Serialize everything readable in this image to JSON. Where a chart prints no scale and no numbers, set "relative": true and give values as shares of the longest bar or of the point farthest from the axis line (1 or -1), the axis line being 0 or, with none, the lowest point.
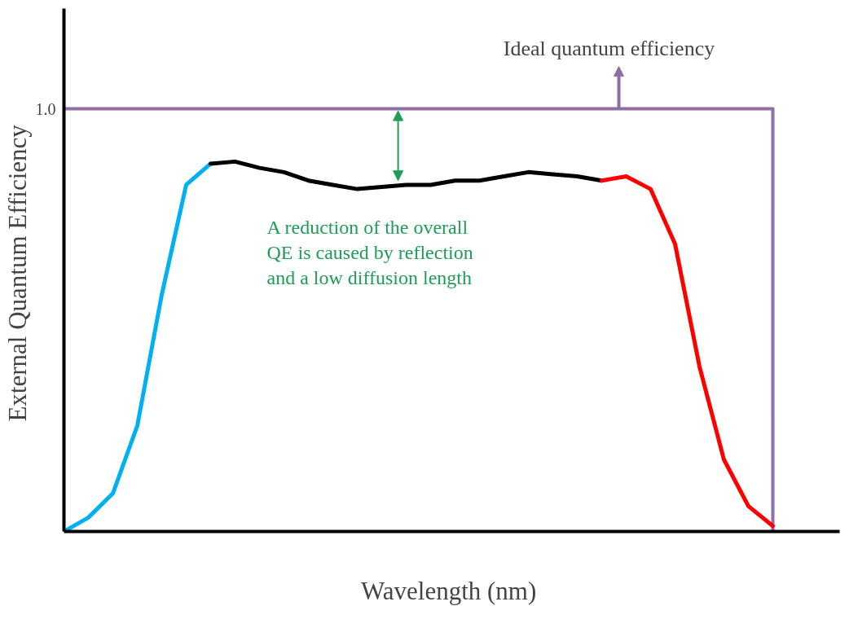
{
  "chart_data": {
    "type": "line",
    "relative": true,
    "xlabel": "Wavelength  (nm)",
    "ylabel": "External Quantum  Efficiency",
    "categories": [
      null,
      null,
      null,
      null,
      null,
      null,
      null,
      null,
      null,
      null,
      null,
      null,
      null,
      null,
      null,
      null,
      null,
      null,
      null,
      null,
      null,
      null,
      null,
      null,
      null,
      null,
      null,
      null,
      null,
      null
    ],
    "series": [
      {
        "type": "step",
        "color": "#8e6fa5",
        "values": [
          1,
          1,
          1,
          1,
          1,
          1,
          1,
          1,
          1,
          1,
          1,
          1,
          1,
          1,
          1,
          1,
          1,
          1,
          1,
          1,
          1,
          1,
          1,
          1,
          1,
          1,
          1,
          1,
          1,
          0
        ]
      },
      {
        "color": "#00b0f0",
        "values": [
          0,
          0.033,
          0.09,
          0.25,
          0.56,
          0.82,
          0.87,
          null,
          null,
          null,
          null,
          null,
          null,
          null,
          null,
          null,
          null,
          null,
          null,
          null,
          null,
          null,
          null,
          null,
          null,
          null,
          null,
          null,
          null,
          null
        ]
      },
      {
        "color": "#000000",
        "values": [
          null,
          null,
          null,
          null,
          null,
          null,
          0.87,
          0.875,
          0.86,
          0.85,
          0.83,
          0.82,
          0.81,
          0.815,
          0.82,
          0.82,
          0.83,
          0.83,
          0.84,
          0.85,
          0.845,
          0.84,
          0.83,
          null,
          null,
          null,
          null,
          null,
          null,
          null
        ]
      },
      {
        "color": "#ff0000",
        "values": [
          null,
          null,
          null,
          null,
          null,
          null,
          null,
          null,
          null,
          null,
          null,
          null,
          null,
          null,
          null,
          null,
          null,
          null,
          null,
          null,
          null,
          null,
          0.83,
          0.84,
          0.81,
          0.68,
          0.39,
          0.17,
          0.06,
          0.013
        ]
      }
    ],
    "annotations": [
      "1.0",
      {
        "text": "Ideal quantum efficiency",
        "y": 1
      },
      "A reduction of the overall\nQE is caused by reflection\nand a low diffusion length"
    ]
  }
}
